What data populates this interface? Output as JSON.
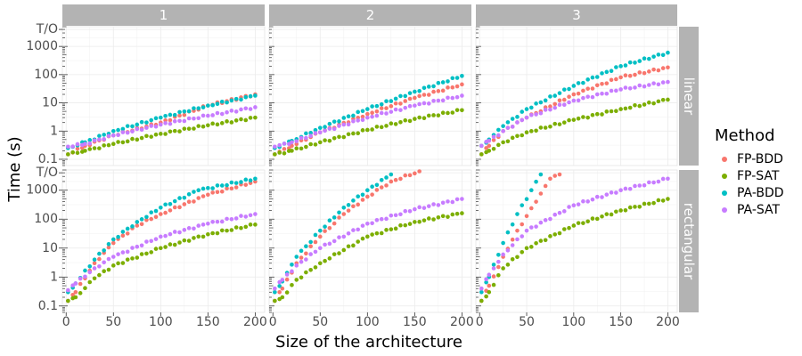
{
  "chart_data": {
    "type": "scatter",
    "xlabel": "Size of the architecture",
    "ylabel": "Time (s)",
    "x_ticks": [
      "0",
      "50",
      "100",
      "150",
      "200"
    ],
    "y_ticks": [
      "0.1",
      "1",
      "10",
      "100",
      "1000",
      "T/O"
    ],
    "y_scale": "log10",
    "xlim": [
      -4,
      210
    ],
    "ylim": [
      0.06,
      5000
    ],
    "col_facets": [
      "1",
      "2",
      "3"
    ],
    "row_facets": [
      "linear",
      "rectangular"
    ],
    "legend": {
      "title": "Method",
      "position": "right",
      "entries": [
        {
          "name": "FP-BDD",
          "color": "#F8766D"
        },
        {
          "name": "FP-SAT",
          "color": "#7CAE00"
        },
        {
          "name": "PA-BDD",
          "color": "#00BFC4"
        },
        {
          "name": "PA-SAT",
          "color": "#C77CFF"
        }
      ]
    },
    "panels": [
      {
        "col": "1",
        "row": "linear",
        "series": [
          {
            "name": "FP-BDD",
            "points": [
              [
                2,
                0.15
              ],
              [
                20,
                0.3
              ],
              [
                50,
                0.7
              ],
              [
                100,
                2
              ],
              [
                150,
                8
              ],
              [
                200,
                20
              ]
            ]
          },
          {
            "name": "FP-SAT",
            "points": [
              [
                2,
                0.15
              ],
              [
                20,
                0.2
              ],
              [
                50,
                0.35
              ],
              [
                100,
                0.8
              ],
              [
                150,
                1.6
              ],
              [
                200,
                3
              ]
            ]
          },
          {
            "name": "PA-BDD",
            "points": [
              [
                2,
                0.25
              ],
              [
                20,
                0.4
              ],
              [
                50,
                1
              ],
              [
                100,
                3
              ],
              [
                150,
                8
              ],
              [
                200,
                18
              ]
            ]
          },
          {
            "name": "PA-SAT",
            "points": [
              [
                2,
                0.28
              ],
              [
                20,
                0.35
              ],
              [
                50,
                0.7
              ],
              [
                100,
                1.7
              ],
              [
                150,
                3.5
              ],
              [
                200,
                7
              ]
            ]
          }
        ]
      },
      {
        "col": "2",
        "row": "linear",
        "series": [
          {
            "name": "FP-BDD",
            "points": [
              [
                2,
                0.15
              ],
              [
                20,
                0.3
              ],
              [
                50,
                0.9
              ],
              [
                100,
                4
              ],
              [
                150,
                15
              ],
              [
                200,
                45
              ]
            ]
          },
          {
            "name": "FP-SAT",
            "points": [
              [
                2,
                0.15
              ],
              [
                20,
                0.2
              ],
              [
                50,
                0.4
              ],
              [
                100,
                1.1
              ],
              [
                150,
                2.7
              ],
              [
                200,
                5.5
              ]
            ]
          },
          {
            "name": "PA-BDD",
            "points": [
              [
                2,
                0.25
              ],
              [
                20,
                0.45
              ],
              [
                50,
                1.3
              ],
              [
                100,
                6
              ],
              [
                150,
                25
              ],
              [
                200,
                90
              ]
            ]
          },
          {
            "name": "PA-SAT",
            "points": [
              [
                2,
                0.28
              ],
              [
                20,
                0.4
              ],
              [
                50,
                0.9
              ],
              [
                100,
                3
              ],
              [
                150,
                8
              ],
              [
                200,
                18
              ]
            ]
          }
        ]
      },
      {
        "col": "3",
        "row": "linear",
        "series": [
          {
            "name": "FP-BDD",
            "points": [
              [
                2,
                0.15
              ],
              [
                10,
                0.3
              ],
              [
                25,
                1
              ],
              [
                50,
                3
              ],
              [
                100,
                20
              ],
              [
                150,
                80
              ],
              [
                200,
                180
              ]
            ]
          },
          {
            "name": "FP-SAT",
            "points": [
              [
                2,
                0.15
              ],
              [
                10,
                0.2
              ],
              [
                25,
                0.4
              ],
              [
                50,
                0.9
              ],
              [
                100,
                2.5
              ],
              [
                150,
                6
              ],
              [
                200,
                13
              ]
            ]
          },
          {
            "name": "PA-BDD",
            "points": [
              [
                2,
                0.3
              ],
              [
                10,
                0.5
              ],
              [
                25,
                1.5
              ],
              [
                50,
                6
              ],
              [
                100,
                40
              ],
              [
                150,
                200
              ],
              [
                200,
                600
              ]
            ]
          },
          {
            "name": "PA-SAT",
            "points": [
              [
                2,
                0.3
              ],
              [
                10,
                0.45
              ],
              [
                25,
                1
              ],
              [
                50,
                3
              ],
              [
                100,
                12
              ],
              [
                150,
                30
              ],
              [
                200,
                55
              ]
            ]
          }
        ]
      },
      {
        "col": "1",
        "row": "rectangular",
        "series": [
          {
            "name": "FP-BDD",
            "points": [
              [
                2,
                0.15
              ],
              [
                10,
                0.3
              ],
              [
                30,
                3
              ],
              [
                50,
                15
              ],
              [
                75,
                60
              ],
              [
                100,
                150
              ],
              [
                150,
                700
              ],
              [
                200,
                2000
              ]
            ]
          },
          {
            "name": "FP-SAT",
            "points": [
              [
                2,
                0.15
              ],
              [
                10,
                0.2
              ],
              [
                30,
                0.9
              ],
              [
                50,
                2.5
              ],
              [
                100,
                10
              ],
              [
                150,
                30
              ],
              [
                200,
                65
              ]
            ]
          },
          {
            "name": "PA-BDD",
            "points": [
              [
                2,
                0.3
              ],
              [
                10,
                0.6
              ],
              [
                30,
                4
              ],
              [
                50,
                20
              ],
              [
                75,
                80
              ],
              [
                100,
                250
              ],
              [
                140,
                1000
              ],
              [
                200,
                2500
              ]
            ]
          },
          {
            "name": "PA-SAT",
            "points": [
              [
                2,
                0.35
              ],
              [
                10,
                0.6
              ],
              [
                30,
                2
              ],
              [
                50,
                5
              ],
              [
                100,
                25
              ],
              [
                150,
                70
              ],
              [
                200,
                150
              ]
            ]
          }
        ]
      },
      {
        "col": "2",
        "row": "rectangular",
        "series": [
          {
            "name": "FP-BDD",
            "points": [
              [
                2,
                0.15
              ],
              [
                10,
                0.4
              ],
              [
                25,
                3
              ],
              [
                50,
                25
              ],
              [
                75,
                150
              ],
              [
                100,
                600
              ],
              [
                125,
                2000
              ],
              [
                155,
                4500
              ]
            ]
          },
          {
            "name": "FP-SAT",
            "points": [
              [
                2,
                0.15
              ],
              [
                10,
                0.2
              ],
              [
                25,
                0.8
              ],
              [
                50,
                3
              ],
              [
                100,
                25
              ],
              [
                150,
                80
              ],
              [
                200,
                160
              ]
            ]
          },
          {
            "name": "PA-BDD",
            "points": [
              [
                2,
                0.3
              ],
              [
                10,
                0.7
              ],
              [
                25,
                5
              ],
              [
                50,
                40
              ],
              [
                75,
                250
              ],
              [
                100,
                1000
              ],
              [
                125,
                3500
              ]
            ]
          },
          {
            "name": "PA-SAT",
            "points": [
              [
                2,
                0.4
              ],
              [
                10,
                0.8
              ],
              [
                25,
                2.5
              ],
              [
                50,
                10
              ],
              [
                100,
                70
              ],
              [
                150,
                220
              ],
              [
                200,
                500
              ]
            ]
          }
        ]
      },
      {
        "col": "3",
        "row": "rectangular",
        "series": [
          {
            "name": "FP-BDD",
            "points": [
              [
                2,
                0.15
              ],
              [
                10,
                0.5
              ],
              [
                25,
                5
              ],
              [
                40,
                40
              ],
              [
                60,
                400
              ],
              [
                75,
                2500
              ],
              [
                85,
                3500
              ]
            ]
          },
          {
            "name": "FP-SAT",
            "points": [
              [
                2,
                0.15
              ],
              [
                10,
                0.3
              ],
              [
                25,
                2
              ],
              [
                50,
                10
              ],
              [
                100,
                60
              ],
              [
                150,
                200
              ],
              [
                200,
                500
              ]
            ]
          },
          {
            "name": "PA-BDD",
            "points": [
              [
                2,
                0.3
              ],
              [
                10,
                1
              ],
              [
                25,
                15
              ],
              [
                40,
                150
              ],
              [
                55,
                1000
              ],
              [
                65,
                3500
              ]
            ]
          },
          {
            "name": "PA-SAT",
            "points": [
              [
                2,
                0.4
              ],
              [
                10,
                1.2
              ],
              [
                25,
                6
              ],
              [
                50,
                40
              ],
              [
                100,
                300
              ],
              [
                150,
                1000
              ],
              [
                200,
                2500
              ]
            ]
          }
        ]
      }
    ]
  }
}
